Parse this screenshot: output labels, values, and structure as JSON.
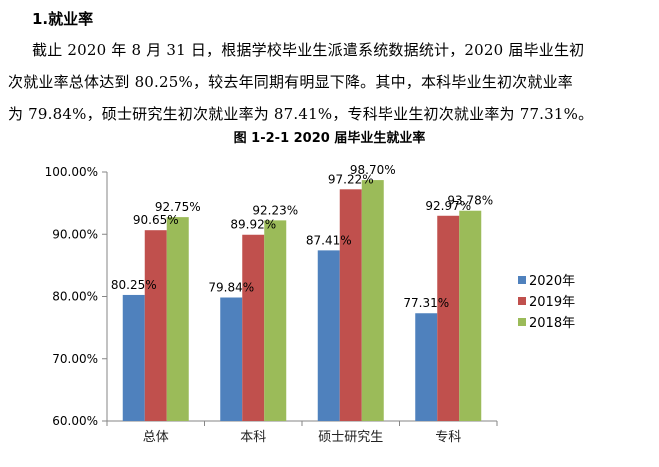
{
  "document": {
    "heading": "1.就业率",
    "paragraph_lines": [
      "截止 2020 年 8 月 31 日，根据学校毕业生派遣系统数据统计，2020 届毕业生初",
      "次就业率总体达到 80.25%，较去年同期有明显下降。其中，本科毕业生初次就业率",
      "为 79.84%，硕士研究生初次就业率为 87.41%，专科毕业生初次就业率为 77.31%。"
    ],
    "figure_title": "图 1-2-1   2020 届毕业生就业率"
  },
  "chart_data": {
    "type": "bar",
    "title": "图 1-2-1   2020 届毕业生就业率",
    "xlabel": "",
    "ylabel": "",
    "categories": [
      "总体",
      "本科",
      "硕士研究生",
      "专科"
    ],
    "series": [
      {
        "name": "2020年",
        "color": "#4F81BD",
        "values": [
          80.25,
          79.84,
          87.41,
          77.31
        ],
        "labels": [
          "80.25%",
          "79.84%",
          "87.41%",
          "77.31%"
        ]
      },
      {
        "name": "2019年",
        "color": "#C0504D",
        "values": [
          90.65,
          89.92,
          97.22,
          92.97
        ],
        "labels": [
          "90.65%",
          "89.92%",
          "97.22%",
          "92.97%"
        ]
      },
      {
        "name": "2018年",
        "color": "#9BBB59",
        "values": [
          92.75,
          92.23,
          98.7,
          93.78
        ],
        "labels": [
          "92.75%",
          "92.23%",
          "98.70%",
          "93.78%"
        ]
      }
    ],
    "ylim": [
      60,
      100
    ],
    "yticks": [
      "60.00%",
      "70.00%",
      "80.00%",
      "90.00%",
      "100.00%"
    ],
    "grid": false,
    "legend_position": "right"
  }
}
